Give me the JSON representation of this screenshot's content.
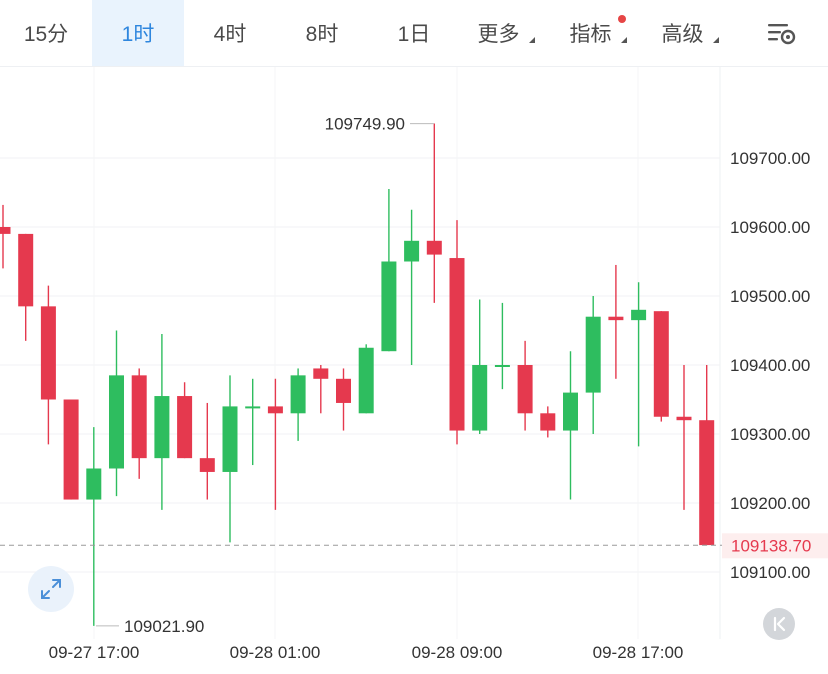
{
  "toolbar": {
    "tabs": [
      {
        "label": "15分",
        "active": false
      },
      {
        "label": "1时",
        "active": true
      },
      {
        "label": "4时",
        "active": false
      },
      {
        "label": "8时",
        "active": false
      },
      {
        "label": "1日",
        "active": false
      },
      {
        "label": "更多",
        "active": false
      },
      {
        "label": "指标",
        "active": false
      },
      {
        "label": "高级",
        "active": false
      }
    ],
    "settings_icon": "chart-settings-icon"
  },
  "colors": {
    "up": "#2ebd5f",
    "down": "#e5394e",
    "accent": "#2e86de",
    "last_price": "#e5394e"
  },
  "chart_data": {
    "type": "candlestick",
    "y_ticks": [
      "109700.00",
      "109600.00",
      "109500.00",
      "109400.00",
      "109300.00",
      "109200.00",
      "109100.00"
    ],
    "x_ticks": [
      "09-27 17:00",
      "09-28 01:00",
      "09-28 09:00",
      "09-28 17:00"
    ],
    "high_label": "109749.90",
    "low_label": "109021.90",
    "last_price_label": "109138.70",
    "grid": true,
    "candles": [
      {
        "o": 109600,
        "h": 109632,
        "l": 109540,
        "c": 109590
      },
      {
        "o": 109590,
        "h": 109590,
        "l": 109435,
        "c": 109485
      },
      {
        "o": 109485,
        "h": 109515,
        "l": 109285,
        "c": 109350
      },
      {
        "o": 109350,
        "h": 109350,
        "l": 109205,
        "c": 109205
      },
      {
        "o": 109205,
        "h": 109310,
        "l": 109022,
        "c": 109250
      },
      {
        "o": 109250,
        "h": 109450,
        "l": 109210,
        "c": 109385
      },
      {
        "o": 109385,
        "h": 109395,
        "l": 109235,
        "c": 109265
      },
      {
        "o": 109265,
        "h": 109445,
        "l": 109190,
        "c": 109355
      },
      {
        "o": 109355,
        "h": 109375,
        "l": 109265,
        "c": 109265
      },
      {
        "o": 109265,
        "h": 109345,
        "l": 109205,
        "c": 109245
      },
      {
        "o": 109245,
        "h": 109385,
        "l": 109143,
        "c": 109340
      },
      {
        "o": 109340,
        "h": 109380,
        "l": 109255,
        "c": 109340
      },
      {
        "o": 109340,
        "h": 109380,
        "l": 109190,
        "c": 109330
      },
      {
        "o": 109330,
        "h": 109395,
        "l": 109290,
        "c": 109385
      },
      {
        "o": 109395,
        "h": 109400,
        "l": 109330,
        "c": 109380
      },
      {
        "o": 109380,
        "h": 109395,
        "l": 109305,
        "c": 109345
      },
      {
        "o": 109330,
        "h": 109430,
        "l": 109330,
        "c": 109425
      },
      {
        "o": 109420,
        "h": 109655,
        "l": 109420,
        "c": 109550
      },
      {
        "o": 109550,
        "h": 109625,
        "l": 109400,
        "c": 109580
      },
      {
        "o": 109580,
        "h": 109750,
        "l": 109490,
        "c": 109560
      },
      {
        "o": 109555,
        "h": 109610,
        "l": 109285,
        "c": 109305
      },
      {
        "o": 109305,
        "h": 109495,
        "l": 109300,
        "c": 109400
      },
      {
        "o": 109400,
        "h": 109490,
        "l": 109365,
        "c": 109400
      },
      {
        "o": 109400,
        "h": 109435,
        "l": 109305,
        "c": 109330
      },
      {
        "o": 109330,
        "h": 109340,
        "l": 109295,
        "c": 109305
      },
      {
        "o": 109305,
        "h": 109420,
        "l": 109205,
        "c": 109360
      },
      {
        "o": 109360,
        "h": 109500,
        "l": 109300,
        "c": 109470
      },
      {
        "o": 109470,
        "h": 109545,
        "l": 109380,
        "c": 109465
      },
      {
        "o": 109465,
        "h": 109520,
        "l": 109282,
        "c": 109480
      },
      {
        "o": 109478,
        "h": 109478,
        "l": 109318,
        "c": 109325
      },
      {
        "o": 109325,
        "h": 109400,
        "l": 109190,
        "c": 109320
      },
      {
        "o": 109320,
        "h": 109400,
        "l": 109139,
        "c": 109139
      }
    ]
  }
}
